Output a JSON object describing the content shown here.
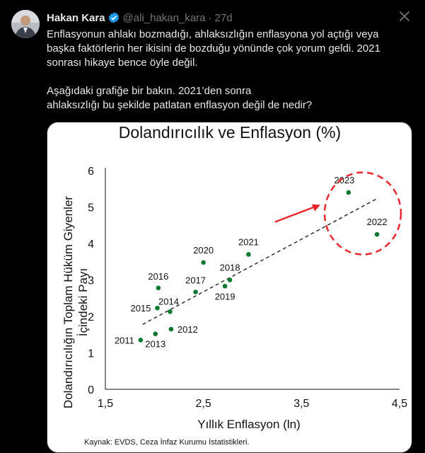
{
  "tweet": {
    "author_name": "Hakan Kara",
    "handle": "@ali_hakan_kara",
    "separator": "·",
    "time": "27d",
    "paragraph1_line1": "Enflasyonun ahlakı bozmadığı, ahlaksızlığın enflasyona yol açtığı veya",
    "paragraph1_line2": "başka faktörlerin her ikisini de bozduğu yönünde çok yorum geldi. 2021",
    "paragraph1_line3": "sonrası hikaye bence öyle değil.",
    "paragraph2_line1": "Aşağıdaki grafiğe bir bakın. 2021’den sonra",
    "paragraph2_line2": "ahlaksızlığı bu şekilde patlatan enflasyon değil de nedir?"
  },
  "colors": {
    "background": "#000000",
    "text": "#e7e9ea",
    "muted": "#71767b",
    "verified": "#1d9bf0",
    "point": "#0b7a2e",
    "highlight": "#e8262b"
  },
  "icons": {
    "verified": "verified-badge-icon",
    "close": "close-icon"
  },
  "chart_data": {
    "type": "scatter",
    "title": "Dolandırıcılık ve Enflasyon (%)",
    "xlabel": "Yıllık Enflasyon (ln)",
    "ylabel_line1": "Dolandırıcılığın Toplam Hüküm Giyenler",
    "ylabel_line2": "İçindeki Payı",
    "xlim": [
      1.5,
      4.5
    ],
    "ylim": [
      0,
      6
    ],
    "xticks": [
      1.5,
      2.5,
      3.5,
      4.5
    ],
    "xtick_labels": [
      "1,5",
      "2,5",
      "3,5",
      "4,5"
    ],
    "yticks": [
      0,
      1,
      2,
      3,
      4,
      5,
      6
    ],
    "ytick_labels": [
      "0",
      "1",
      "2",
      "3",
      "4",
      "5",
      "6"
    ],
    "grid": false,
    "points": [
      {
        "label": "2011",
        "x": 1.86,
        "y": 1.35
      },
      {
        "label": "2012",
        "x": 2.17,
        "y": 1.65
      },
      {
        "label": "2013",
        "x": 2.01,
        "y": 1.52
      },
      {
        "label": "2014",
        "x": 2.16,
        "y": 2.13
      },
      {
        "label": "2015",
        "x": 2.03,
        "y": 2.23
      },
      {
        "label": "2016",
        "x": 2.04,
        "y": 2.78
      },
      {
        "label": "2017",
        "x": 2.42,
        "y": 2.67
      },
      {
        "label": "2018",
        "x": 2.77,
        "y": 3.0
      },
      {
        "label": "2019",
        "x": 2.72,
        "y": 2.83
      },
      {
        "label": "2020",
        "x": 2.5,
        "y": 3.48
      },
      {
        "label": "2021",
        "x": 2.96,
        "y": 3.7
      },
      {
        "label": "2022",
        "x": 4.27,
        "y": 4.25
      },
      {
        "label": "2023",
        "x": 3.98,
        "y": 5.4
      }
    ],
    "trendline": {
      "x": [
        1.88,
        4.27
      ],
      "y": [
        1.78,
        5.23
      ],
      "style": "dashed"
    },
    "highlight": {
      "years": [
        "2022",
        "2023"
      ],
      "style": "dashed red circle with arrow"
    },
    "source": "Kaynak: EVDS, Ceza İnfaz Kurumu İstatistikleri."
  }
}
